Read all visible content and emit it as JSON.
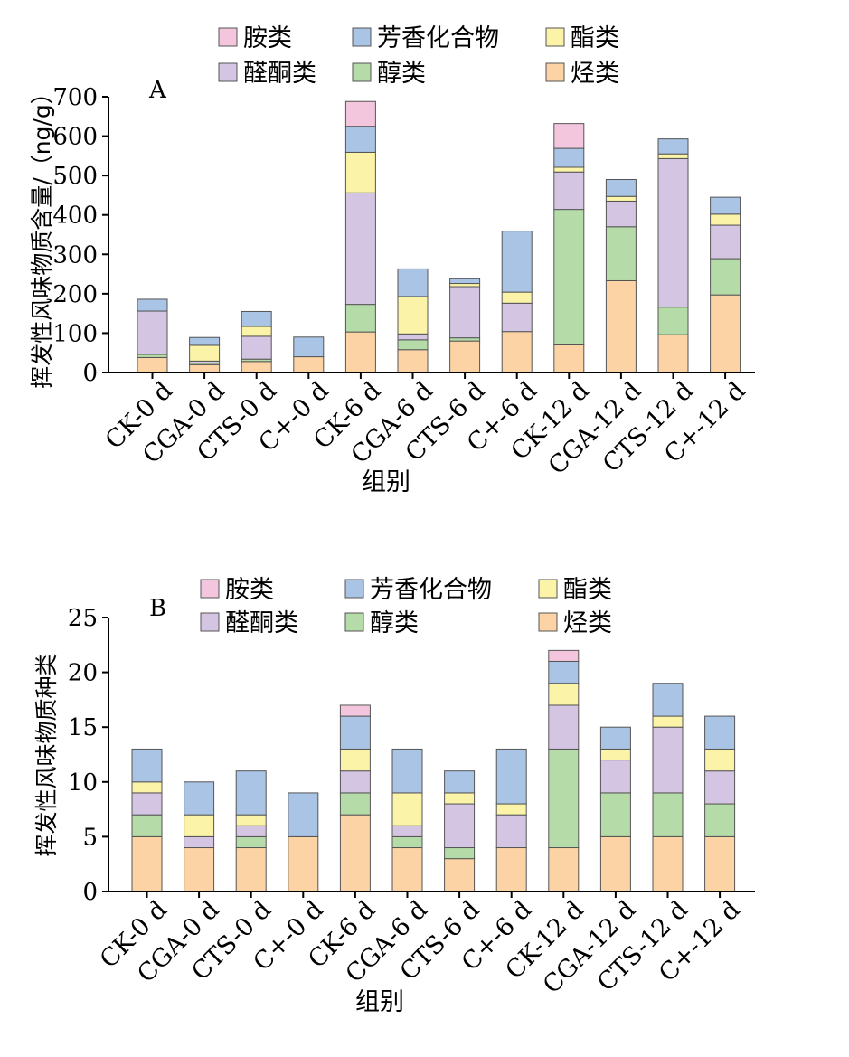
{
  "colors": {
    "胺类": "#f4c6de",
    "芳香化合物": "#a9c4e4",
    "酯类": "#fbf3a8",
    "醛酮类": "#d4c5e2",
    "醇类": "#b5dba8",
    "烃类": "#fbd3a5"
  },
  "chart_data": [
    {
      "type": "bar",
      "stacked": true,
      "panel_label": "A",
      "ylabel": "挥发性风味物质含量/（ng/g）",
      "xlabel": "组别",
      "ylim": [
        0,
        700
      ],
      "yticks": [
        0,
        100,
        200,
        300,
        400,
        500,
        600,
        700
      ],
      "categories": [
        "CK-0 d",
        "CGA-0 d",
        "CTS-0 d",
        "C+-0 d",
        "CK-6 d",
        "CGA-6 d",
        "CTS-6 d",
        "C+-6 d",
        "CK-12 d",
        "CGA-12 d",
        "CTS-12 d",
        "C+-12 d"
      ],
      "legend": [
        "胺类",
        "芳香化合物",
        "酯类",
        "醛酮类",
        "醇类",
        "烃类"
      ],
      "series": [
        {
          "name": "烃类",
          "values": [
            38,
            20,
            28,
            40,
            103,
            58,
            80,
            104,
            70,
            233,
            96,
            197
          ]
        },
        {
          "name": "醇类",
          "values": [
            8,
            4,
            6,
            0,
            70,
            25,
            8,
            0,
            344,
            137,
            70,
            92
          ]
        },
        {
          "name": "醛酮类",
          "values": [
            110,
            5,
            58,
            0,
            283,
            15,
            130,
            72,
            95,
            65,
            377,
            85
          ]
        },
        {
          "name": "酯类",
          "values": [
            0,
            40,
            25,
            0,
            103,
            95,
            8,
            28,
            12,
            12,
            12,
            28
          ]
        },
        {
          "name": "芳香化合物",
          "values": [
            30,
            20,
            38,
            50,
            66,
            70,
            12,
            155,
            48,
            43,
            38,
            43
          ]
        },
        {
          "name": "胺类",
          "values": [
            0,
            0,
            0,
            0,
            63,
            0,
            0,
            0,
            63,
            0,
            0,
            0
          ]
        }
      ]
    },
    {
      "type": "bar",
      "stacked": true,
      "panel_label": "B",
      "ylabel": "挥发性风味物质种类",
      "xlabel": "组别",
      "ylim": [
        0,
        25
      ],
      "yticks": [
        0,
        5,
        10,
        15,
        20,
        25
      ],
      "categories": [
        "CK-0 d",
        "CGA-0 d",
        "CTS-0 d",
        "C+-0 d",
        "CK-6 d",
        "CGA-6 d",
        "CTS-6 d",
        "C+-6 d",
        "CK-12 d",
        "CGA-12 d",
        "CTS-12 d",
        "C+-12 d"
      ],
      "legend": [
        "胺类",
        "芳香化合物",
        "酯类",
        "醛酮类",
        "醇类",
        "烃类"
      ],
      "series": [
        {
          "name": "烃类",
          "values": [
            5,
            4,
            4,
            5,
            7,
            4,
            3,
            4,
            4,
            5,
            5,
            5
          ]
        },
        {
          "name": "醇类",
          "values": [
            2,
            0,
            1,
            0,
            2,
            1,
            1,
            0,
            9,
            4,
            4,
            3
          ]
        },
        {
          "name": "醛酮类",
          "values": [
            2,
            1,
            1,
            0,
            2,
            1,
            4,
            3,
            4,
            3,
            6,
            3
          ]
        },
        {
          "name": "酯类",
          "values": [
            1,
            2,
            1,
            0,
            2,
            3,
            1,
            1,
            2,
            1,
            1,
            2
          ]
        },
        {
          "name": "芳香化合物",
          "values": [
            3,
            3,
            4,
            4,
            3,
            4,
            2,
            5,
            2,
            2,
            3,
            3
          ]
        },
        {
          "name": "胺类",
          "values": [
            0,
            0,
            0,
            0,
            1,
            0,
            0,
            0,
            1,
            0,
            0,
            0
          ]
        }
      ]
    }
  ]
}
